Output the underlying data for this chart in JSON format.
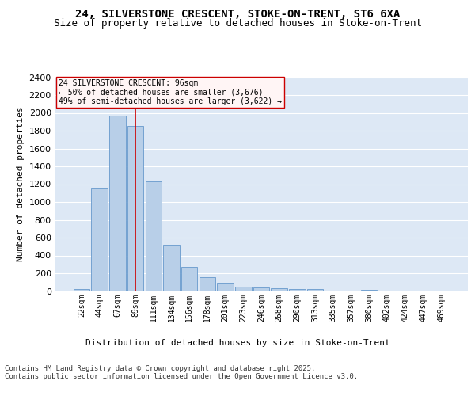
{
  "title1": "24, SILVERSTONE CRESCENT, STOKE-ON-TRENT, ST6 6XA",
  "title2": "Size of property relative to detached houses in Stoke-on-Trent",
  "xlabel": "Distribution of detached houses by size in Stoke-on-Trent",
  "ylabel": "Number of detached properties",
  "categories": [
    "22sqm",
    "44sqm",
    "67sqm",
    "89sqm",
    "111sqm",
    "134sqm",
    "156sqm",
    "178sqm",
    "201sqm",
    "223sqm",
    "246sqm",
    "268sqm",
    "290sqm",
    "313sqm",
    "335sqm",
    "357sqm",
    "380sqm",
    "402sqm",
    "424sqm",
    "447sqm",
    "469sqm"
  ],
  "values": [
    25,
    1155,
    1970,
    1850,
    1230,
    520,
    275,
    158,
    90,
    48,
    42,
    30,
    20,
    18,
    5,
    3,
    15,
    2,
    1,
    1,
    1
  ],
  "bar_color": "#b8cfe8",
  "bar_edge_color": "#6699cc",
  "background_color": "#dde8f5",
  "grid_color": "#ffffff",
  "vline_color": "#cc0000",
  "vline_x_index": 3,
  "annotation_text": "24 SILVERSTONE CRESCENT: 96sqm\n← 50% of detached houses are smaller (3,676)\n49% of semi-detached houses are larger (3,622) →",
  "annotation_box_facecolor": "#fff5f5",
  "annotation_box_edge": "#cc0000",
  "ylim": [
    0,
    2400
  ],
  "yticks": [
    0,
    200,
    400,
    600,
    800,
    1000,
    1200,
    1400,
    1600,
    1800,
    2000,
    2200,
    2400
  ],
  "footer1": "Contains HM Land Registry data © Crown copyright and database right 2025.",
  "footer2": "Contains public sector information licensed under the Open Government Licence v3.0.",
  "title1_fontsize": 10,
  "title2_fontsize": 9,
  "tick_fontsize": 7,
  "ylabel_fontsize": 8,
  "xlabel_fontsize": 8,
  "footer_fontsize": 6.5,
  "annotation_fontsize": 7
}
